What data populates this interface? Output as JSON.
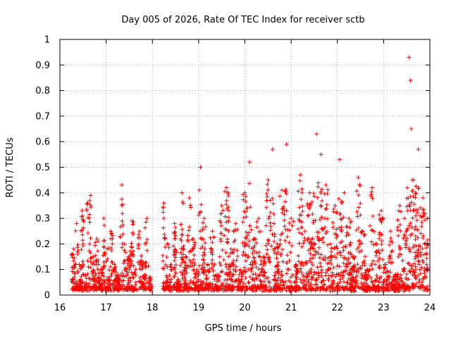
{
  "chart_data": {
    "type": "scatter",
    "title": "Day 005 of 2026, Rate Of TEC Index for receiver sctb",
    "xlabel": "GPS time / hours",
    "ylabel": "ROTI / TECUs",
    "xlim": [
      16,
      24
    ],
    "ylim": [
      0,
      1
    ],
    "x_ticks": [
      "16",
      "17",
      "18",
      "19",
      "20",
      "21",
      "22",
      "23",
      "24"
    ],
    "y_ticks": [
      "0",
      "0.1",
      "0.2",
      "0.3",
      "0.4",
      "0.5",
      "0.6",
      "0.7",
      "0.8",
      "0.9",
      "1"
    ],
    "grid": true,
    "legend": "none",
    "marker": "plus",
    "color": "#ff0000",
    "series": [
      {
        "x": [
          16.3,
          16.36,
          16.42,
          16.48,
          16.55,
          16.6,
          16.66,
          16.72,
          16.8,
          16.88,
          16.95,
          17.02,
          17.1,
          17.18,
          17.26,
          17.34,
          17.4,
          17.48,
          17.56,
          17.64,
          17.72,
          17.8,
          17.88,
          17.96,
          18.25,
          18.32,
          18.4,
          18.48,
          18.56,
          18.64,
          18.72,
          18.8,
          18.88,
          18.96,
          19.04,
          19.12,
          19.2,
          19.3,
          19.4,
          19.5,
          19.6,
          19.7,
          19.8,
          19.9,
          20.0,
          20.1,
          20.2,
          20.3,
          20.4,
          20.5,
          20.6,
          20.7,
          20.8,
          20.9,
          21.0,
          21.1,
          21.2,
          21.3,
          21.4,
          21.55,
          21.65,
          21.75,
          21.85,
          21.95,
          22.05,
          22.15,
          22.25,
          22.35,
          22.45,
          22.55,
          22.65,
          22.75,
          22.85,
          22.95,
          23.05,
          23.15,
          23.25,
          23.35,
          23.45,
          23.55,
          23.65,
          23.75,
          23.85,
          23.95
        ],
        "y": [
          0.18,
          0.28,
          0.12,
          0.33,
          0.08,
          0.36,
          0.39,
          0.15,
          0.22,
          0.1,
          0.3,
          0.18,
          0.25,
          0.12,
          0.08,
          0.43,
          0.2,
          0.15,
          0.29,
          0.1,
          0.25,
          0.13,
          0.3,
          0.07,
          0.36,
          0.2,
          0.12,
          0.28,
          0.06,
          0.4,
          0.15,
          0.38,
          0.22,
          0.1,
          0.5,
          0.3,
          0.12,
          0.25,
          0.08,
          0.35,
          0.42,
          0.18,
          0.28,
          0.1,
          0.4,
          0.52,
          0.22,
          0.3,
          0.15,
          0.45,
          0.57,
          0.2,
          0.41,
          0.59,
          0.3,
          0.12,
          0.47,
          0.25,
          0.4,
          0.63,
          0.55,
          0.43,
          0.2,
          0.35,
          0.53,
          0.4,
          0.3,
          0.15,
          0.46,
          0.25,
          0.1,
          0.42,
          0.2,
          0.33,
          0.12,
          0.25,
          0.08,
          0.35,
          0.3,
          0.93,
          0.45,
          0.57,
          0.38,
          0.3
        ],
        "extra_x": [
          23.58,
          23.6,
          23.62
        ],
        "extra_y": [
          0.84,
          0.65,
          0.45
        ]
      }
    ]
  }
}
